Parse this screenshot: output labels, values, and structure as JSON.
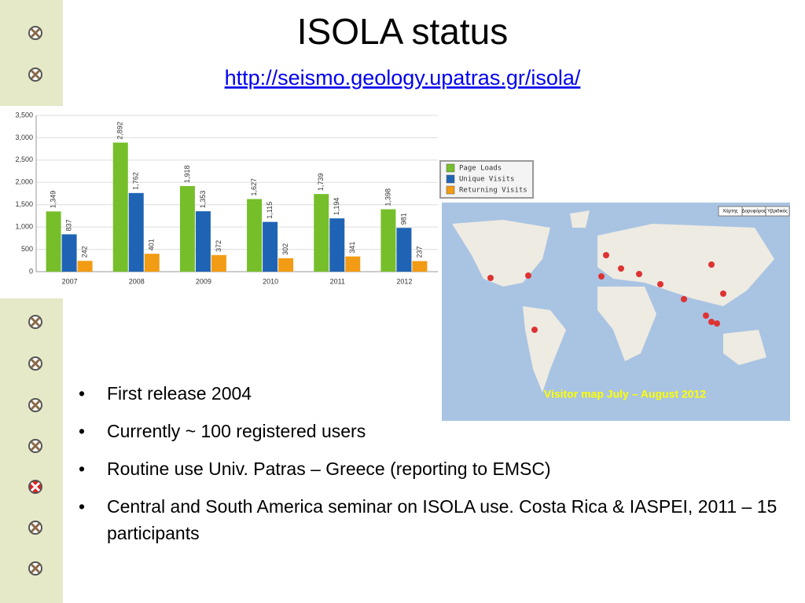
{
  "slide": {
    "title": "ISOLA status",
    "link": "http://seismo.geology.upatras.gr/isola/",
    "bullets": [
      "First release 2004",
      "Currently ~ 100 registered users",
      "Routine use Univ. Patras – Greece (reporting to EMSC)",
      "Central and South America seminar on ISOLA use. Costa Rica & IASPEI, 2011 – 15 participants"
    ],
    "map_caption": "Visitor map July – August 2012",
    "map_buttons": [
      "Χάρτης",
      "Δορυφόρος",
      "Υβριδικός"
    ]
  },
  "chart_data": {
    "type": "bar",
    "categories": [
      "2007",
      "2008",
      "2009",
      "2010",
      "2011",
      "2012"
    ],
    "series": [
      {
        "name": "Page Loads",
        "color": "#76bf2b",
        "values": [
          1349,
          2892,
          1918,
          1627,
          1739,
          1398
        ],
        "value_labels": [
          "1,349",
          "2,892",
          "1,918",
          "1,627",
          "1,739",
          "1,398"
        ]
      },
      {
        "name": "Unique Visits",
        "color": "#1f64b4",
        "values": [
          837,
          1762,
          1353,
          1115,
          1194,
          981
        ],
        "value_labels": [
          "837",
          "1,762",
          "1,353",
          "1,115",
          "1,194",
          "981"
        ]
      },
      {
        "name": "Returning Visits",
        "color": "#f29b14",
        "values": [
          242,
          401,
          372,
          302,
          341,
          237
        ],
        "value_labels": [
          "242",
          "401",
          "372",
          "302",
          "341",
          "237"
        ]
      }
    ],
    "ylim": [
      0,
      3500
    ],
    "yticks": [
      0,
      {
        "value": 500,
        "label": "500"
      },
      {
        "value": 1000,
        "label": "1,000"
      },
      {
        "value": 1500,
        "label": "1,500"
      },
      {
        "value": 2000,
        "label": "2,000"
      },
      {
        "value": 2500,
        "label": "2,500"
      },
      {
        "value": 3000,
        "label": "3,000"
      },
      {
        "value": 3500,
        "label": "3,500"
      }
    ],
    "grid": true,
    "legend": "right"
  }
}
